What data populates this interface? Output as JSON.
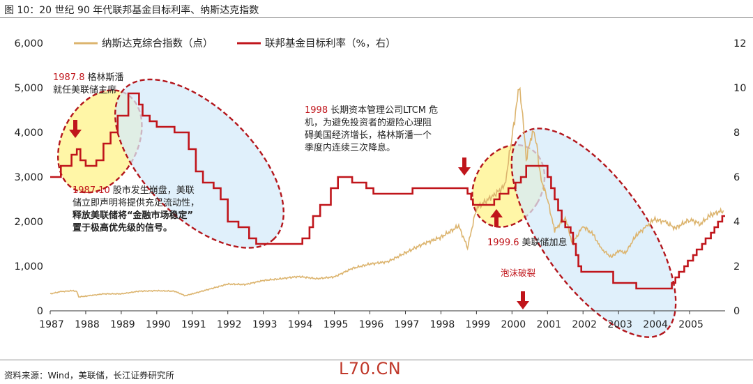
{
  "header": {
    "title": "图 10：20 世纪 90 年代联邦基金目标利率、纳斯达克指数"
  },
  "footer": {
    "source": "资料来源：Wind，美联储，长江证券研究所",
    "watermark": "L70.CN"
  },
  "colors": {
    "nasdaq": "#dcb46e",
    "rate": "#c0151b",
    "ellipse": "#b3161c",
    "yellow_fill": "#fff38a",
    "blue_fill": "#d6ebfa",
    "arrow": "#c0151b",
    "annot_red": "#c0151b"
  },
  "chart_data": {
    "type": "line",
    "xlabel": "",
    "x_ticks": [
      "1987",
      "1988",
      "1989",
      "1990",
      "1991",
      "1992",
      "1993",
      "1994",
      "1995",
      "1996",
      "1997",
      "1998",
      "1999",
      "2000",
      "2001",
      "2002",
      "2003",
      "2004",
      "2005"
    ],
    "y_left": {
      "min": 0,
      "max": 6000,
      "ticks": [
        "0",
        "1,000",
        "2,000",
        "3,000",
        "4,000",
        "5,000",
        "6,000"
      ]
    },
    "y_right": {
      "min": 0,
      "max": 12,
      "ticks": [
        "0",
        "2",
        "4",
        "6",
        "8",
        "10",
        "12"
      ]
    },
    "legend": [
      "纳斯达克综合指数（点）",
      "联邦基金目标利率（%，右）"
    ],
    "series": [
      {
        "name": "纳斯达克综合指数（点）",
        "axis": "left",
        "points": [
          [
            1987.0,
            380
          ],
          [
            1987.3,
            430
          ],
          [
            1987.6,
            450
          ],
          [
            1987.75,
            440
          ],
          [
            1987.8,
            310
          ],
          [
            1988.0,
            330
          ],
          [
            1988.5,
            380
          ],
          [
            1989.0,
            380
          ],
          [
            1989.5,
            440
          ],
          [
            1990.0,
            450
          ],
          [
            1990.5,
            440
          ],
          [
            1990.8,
            340
          ],
          [
            1991.0,
            380
          ],
          [
            1991.5,
            490
          ],
          [
            1992.0,
            600
          ],
          [
            1992.5,
            590
          ],
          [
            1993.0,
            680
          ],
          [
            1993.5,
            720
          ],
          [
            1994.0,
            770
          ],
          [
            1994.5,
            720
          ],
          [
            1995.0,
            760
          ],
          [
            1995.5,
            950
          ],
          [
            1996.0,
            1050
          ],
          [
            1996.5,
            1100
          ],
          [
            1997.0,
            1300
          ],
          [
            1997.5,
            1500
          ],
          [
            1998.0,
            1650
          ],
          [
            1998.5,
            1900
          ],
          [
            1998.75,
            1420
          ],
          [
            1999.0,
            2300
          ],
          [
            1999.5,
            2600
          ],
          [
            1999.8,
            2800
          ],
          [
            2000.0,
            3900
          ],
          [
            2000.2,
            5000
          ],
          [
            2000.3,
            4400
          ],
          [
            2000.4,
            3400
          ],
          [
            2000.6,
            4100
          ],
          [
            2000.7,
            3700
          ],
          [
            2000.8,
            3000
          ],
          [
            2001.0,
            2500
          ],
          [
            2001.2,
            1800
          ],
          [
            2001.5,
            2100
          ],
          [
            2001.7,
            1500
          ],
          [
            2002.0,
            1900
          ],
          [
            2002.3,
            1700
          ],
          [
            2002.5,
            1400
          ],
          [
            2002.8,
            1200
          ],
          [
            2003.0,
            1350
          ],
          [
            2003.2,
            1300
          ],
          [
            2003.5,
            1700
          ],
          [
            2003.8,
            1900
          ],
          [
            2004.0,
            2050
          ],
          [
            2004.3,
            2000
          ],
          [
            2004.6,
            1850
          ],
          [
            2005.0,
            2050
          ],
          [
            2005.3,
            1950
          ],
          [
            2005.6,
            2150
          ],
          [
            2005.95,
            2250
          ]
        ]
      },
      {
        "name": "联邦基金目标利率（%，右）",
        "axis": "right",
        "step": true,
        "points": [
          [
            1987.0,
            6.0
          ],
          [
            1987.3,
            6.5
          ],
          [
            1987.6,
            7.0
          ],
          [
            1987.75,
            7.25
          ],
          [
            1987.85,
            6.75
          ],
          [
            1988.0,
            6.5
          ],
          [
            1988.3,
            6.75
          ],
          [
            1988.5,
            7.5
          ],
          [
            1988.7,
            8.0
          ],
          [
            1988.9,
            8.75
          ],
          [
            1989.2,
            9.75
          ],
          [
            1989.5,
            9.25
          ],
          [
            1989.6,
            8.75
          ],
          [
            1989.8,
            8.5
          ],
          [
            1990.0,
            8.25
          ],
          [
            1990.5,
            8.0
          ],
          [
            1990.9,
            7.25
          ],
          [
            1991.1,
            6.25
          ],
          [
            1991.3,
            5.75
          ],
          [
            1991.6,
            5.5
          ],
          [
            1991.8,
            5.0
          ],
          [
            1992.0,
            4.0
          ],
          [
            1992.3,
            3.75
          ],
          [
            1992.6,
            3.25
          ],
          [
            1992.8,
            3.0
          ],
          [
            1994.1,
            3.25
          ],
          [
            1994.3,
            3.75
          ],
          [
            1994.4,
            4.25
          ],
          [
            1994.6,
            4.75
          ],
          [
            1994.9,
            5.5
          ],
          [
            1995.1,
            6.0
          ],
          [
            1995.5,
            5.75
          ],
          [
            1995.9,
            5.5
          ],
          [
            1996.1,
            5.25
          ],
          [
            1997.2,
            5.5
          ],
          [
            1998.75,
            5.25
          ],
          [
            1998.85,
            5.0
          ],
          [
            1998.9,
            4.75
          ],
          [
            1999.5,
            5.0
          ],
          [
            1999.65,
            5.25
          ],
          [
            1999.9,
            5.5
          ],
          [
            2000.1,
            5.75
          ],
          [
            2000.25,
            6.0
          ],
          [
            2000.4,
            6.5
          ],
          [
            2001.0,
            6.0
          ],
          [
            2001.1,
            5.5
          ],
          [
            2001.2,
            5.0
          ],
          [
            2001.3,
            4.5
          ],
          [
            2001.4,
            4.0
          ],
          [
            2001.5,
            3.75
          ],
          [
            2001.65,
            3.5
          ],
          [
            2001.72,
            3.0
          ],
          [
            2001.8,
            2.5
          ],
          [
            2001.87,
            2.0
          ],
          [
            2001.95,
            1.75
          ],
          [
            2002.85,
            1.25
          ],
          [
            2003.5,
            1.0
          ],
          [
            2004.5,
            1.25
          ],
          [
            2004.6,
            1.5
          ],
          [
            2004.7,
            1.75
          ],
          [
            2004.85,
            2.0
          ],
          [
            2004.95,
            2.25
          ],
          [
            2005.1,
            2.5
          ],
          [
            2005.2,
            2.75
          ],
          [
            2005.35,
            3.0
          ],
          [
            2005.45,
            3.25
          ],
          [
            2005.6,
            3.5
          ],
          [
            2005.7,
            3.75
          ],
          [
            2005.8,
            4.0
          ],
          [
            2005.92,
            4.25
          ],
          [
            2006.0,
            4.25
          ]
        ]
      }
    ],
    "annotations": [
      {
        "year": "1987.8",
        "text": "格林斯潘就任美联储主席"
      },
      {
        "year": "1987.10",
        "text1": "股市发生崩盘，美联储立即声明将提供充足流动性，",
        "text2": "释放美联储将“金融市场稳定”置于极高优先级的信号。"
      },
      {
        "year": "1998",
        "text": "长期资本管理公司LTCM 危机，为避免投资者的避险心理阻碍美国经济增长，格林斯潘一个季度内连续三次降息。"
      },
      {
        "year": "1999.6",
        "text": "美联储加息"
      },
      {
        "text": "泡沫破裂"
      }
    ]
  },
  "labels": {
    "a1_year": "1987.8",
    "a1_l1": "格林斯潘",
    "a1_l2": "就任美联储主席",
    "a2_year": "1987.10",
    "a2_l1": "股市发生崩盘，美联",
    "a2_l2": "储立即声明将提供充足流动性，",
    "a2_l3": "释放美联储将“金融市场稳定”",
    "a2_l4": "置于极高优先级的信号。",
    "a3_year": "1998",
    "a3_l1": "长期资本管理公司LTCM 危",
    "a3_l2": "机，为避免投资者的避险心理阻",
    "a3_l3": "碍美国经济增长，格林斯潘一个",
    "a3_l4": "季度内连续三次降息。",
    "a4_year": "1999.6",
    "a4_text": "美联储加息",
    "a5_text": "泡沫破裂"
  }
}
